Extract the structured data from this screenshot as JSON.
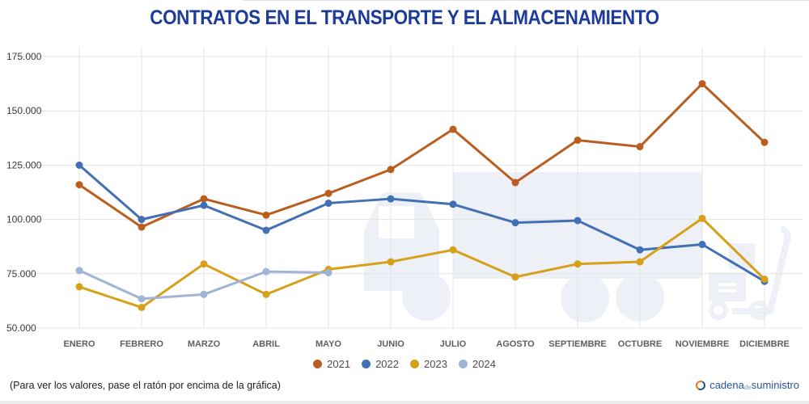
{
  "title": "CONTRATOS EN EL TRANSPORTE Y EL ALMACENAMIENTO",
  "chart_data": {
    "type": "line",
    "categories": [
      "ENERO",
      "FEBRERO",
      "MARZO",
      "ABRIL",
      "MAYO",
      "JUNIO",
      "JULIO",
      "AGOSTO",
      "SEPTIEMBRE",
      "OCTUBRE",
      "NOVIEMBRE",
      "DICIEMBRE"
    ],
    "series": [
      {
        "name": "2021",
        "color": "#b95e20",
        "values": [
          116000,
          96500,
          109500,
          102000,
          112000,
          123000,
          141500,
          117000,
          136500,
          133500,
          162500,
          135500
        ]
      },
      {
        "name": "2022",
        "color": "#4270b4",
        "values": [
          125000,
          100000,
          106500,
          95000,
          107500,
          109500,
          107000,
          98500,
          99500,
          86000,
          88500,
          71500
        ]
      },
      {
        "name": "2023",
        "color": "#d6a019",
        "values": [
          69000,
          59500,
          79500,
          65500,
          77000,
          80500,
          86000,
          73500,
          79500,
          80500,
          100500,
          72500
        ]
      },
      {
        "name": "2024",
        "color": "#a2b3d8",
        "values": [
          76500,
          63500,
          65500,
          76000,
          75500
        ]
      }
    ],
    "ylim": [
      50000,
      175000
    ],
    "yticks": [
      175000,
      150000,
      125000,
      100000,
      75000,
      50000
    ],
    "ytick_labels": [
      "175.000",
      "150.000",
      "125.000",
      "100.000",
      "75.000",
      "50.000"
    ],
    "xlabel": "",
    "ylabel": "",
    "grid": true,
    "legend_position": "bottom",
    "watermark_icons": [
      "truck-icon",
      "hand-truck-icon"
    ]
  },
  "footer": {
    "hint": "(Para ver los valores, pase el ratón por encima de la gráfica)",
    "logo": {
      "word1": "cadena",
      "word2": "de",
      "word3": "suministro"
    }
  },
  "colors": {
    "title": "#1d3c99",
    "grid": "#e4e4e4",
    "ytick_text": "#3c3c3c",
    "xtick_text": "#5f5f5f",
    "watermark": "#edf0f7",
    "logo_blue": "#28549c",
    "logo_orange": "#e87722"
  }
}
